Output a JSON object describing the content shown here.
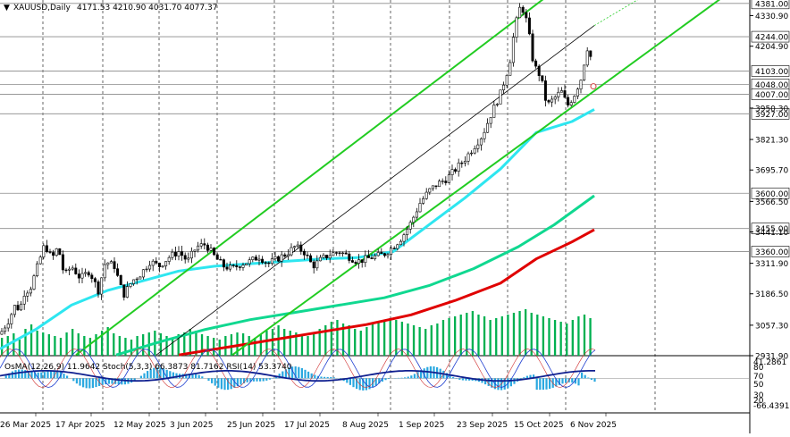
{
  "header": {
    "symbol_label": "XAUUSD,Daily",
    "ohlc_label": "4171.53 4210.90 4031.70 4077.37",
    "indicators_label": "OsMA(12,26,9) 11.9642  Stoch(5,3,3) 66.3873 81.7162  RSI(14) 53.3740"
  },
  "colors": {
    "background": "#ffffff",
    "candle": "#000000",
    "volume": "#00b050",
    "ema_fast": "#2ee6f0",
    "ema_mid": "#10d890",
    "ema_slow": "#e00000",
    "channel": "#22cc22",
    "level_line": "#8a8a8a"
  },
  "chart_data": {
    "type": "candlestick",
    "title": "XAUUSD,Daily",
    "x_tick_labels": [
      "26 Mar 2025",
      "17 Apr 2025",
      "12 May 2025",
      "3 Jun 2025",
      "25 Jun 2025",
      "17 Jul 2025",
      "8 Aug 2025",
      "1 Sep 2025",
      "23 Sep 2025",
      "15 Oct 2025",
      "6 Nov 2025"
    ],
    "price_axis_labels": [
      "4330.90",
      "4204.90",
      "3950.30",
      "3821.30",
      "3695.70",
      "3566.50",
      "3441.10",
      "3311.90",
      "3186.50",
      "3057.30",
      "2931.90"
    ],
    "ylim": [
      2931.9,
      4395
    ],
    "levels": [
      {
        "value": 4381.0,
        "label": "4381.00"
      },
      {
        "value": 4244.0,
        "label": "4244.00"
      },
      {
        "value": 4103.0,
        "label": "4103.00"
      },
      {
        "value": 4048.0,
        "label": "4048.00"
      },
      {
        "value": 4007.0,
        "label": "4007.00"
      },
      {
        "value": 3927.0,
        "label": "3927.00"
      },
      {
        "value": 3600.0,
        "label": "3600.00"
      },
      {
        "value": 3455.0,
        "label": "3455.00"
      },
      {
        "value": 3360.0,
        "label": "3360.00"
      }
    ],
    "close_path": [
      [
        0,
        3020
      ],
      [
        10,
        3080
      ],
      [
        17,
        3140
      ],
      [
        22,
        3120
      ],
      [
        27,
        3190
      ],
      [
        34,
        3210
      ],
      [
        42,
        3300
      ],
      [
        50,
        3390
      ],
      [
        58,
        3330
      ],
      [
        65,
        3380
      ],
      [
        72,
        3260
      ],
      [
        80,
        3300
      ],
      [
        90,
        3250
      ],
      [
        100,
        3280
      ],
      [
        110,
        3200
      ],
      [
        118,
        3320
      ],
      [
        128,
        3300
      ],
      [
        138,
        3180
      ],
      [
        148,
        3240
      ],
      [
        158,
        3270
      ],
      [
        168,
        3320
      ],
      [
        178,
        3300
      ],
      [
        190,
        3340
      ],
      [
        200,
        3360
      ],
      [
        210,
        3320
      ],
      [
        220,
        3380
      ],
      [
        230,
        3390
      ],
      [
        240,
        3340
      ],
      [
        250,
        3300
      ],
      [
        260,
        3290
      ],
      [
        270,
        3310
      ],
      [
        280,
        3320
      ],
      [
        290,
        3340
      ],
      [
        300,
        3310
      ],
      [
        310,
        3330
      ],
      [
        320,
        3350
      ],
      [
        330,
        3380
      ],
      [
        340,
        3360
      ],
      [
        350,
        3300
      ],
      [
        360,
        3330
      ],
      [
        370,
        3350
      ],
      [
        380,
        3360
      ],
      [
        390,
        3340
      ],
      [
        400,
        3320
      ],
      [
        410,
        3330
      ],
      [
        420,
        3340
      ],
      [
        430,
        3350
      ],
      [
        440,
        3380
      ],
      [
        450,
        3420
      ],
      [
        460,
        3480
      ],
      [
        470,
        3560
      ],
      [
        480,
        3610
      ],
      [
        490,
        3640
      ],
      [
        500,
        3660
      ],
      [
        510,
        3700
      ],
      [
        520,
        3740
      ],
      [
        530,
        3790
      ],
      [
        540,
        3840
      ],
      [
        550,
        3930
      ],
      [
        560,
        4010
      ],
      [
        570,
        4130
      ],
      [
        576,
        4280
      ],
      [
        583,
        4380
      ],
      [
        590,
        4300
      ],
      [
        597,
        4130
      ],
      [
        605,
        4080
      ],
      [
        612,
        3960
      ],
      [
        620,
        3990
      ],
      [
        628,
        4020
      ],
      [
        635,
        3960
      ],
      [
        642,
        4000
      ],
      [
        650,
        4070
      ],
      [
        657,
        4200
      ],
      [
        662,
        4150
      ],
      [
        665,
        4077
      ]
    ],
    "ema_fast": [
      [
        0,
        2960
      ],
      [
        40,
        3040
      ],
      [
        80,
        3140
      ],
      [
        120,
        3200
      ],
      [
        160,
        3240
      ],
      [
        200,
        3280
      ],
      [
        240,
        3300
      ],
      [
        280,
        3310
      ],
      [
        320,
        3320
      ],
      [
        360,
        3330
      ],
      [
        400,
        3335
      ],
      [
        440,
        3360
      ],
      [
        480,
        3470
      ],
      [
        520,
        3580
      ],
      [
        560,
        3700
      ],
      [
        600,
        3850
      ],
      [
        640,
        3895
      ],
      [
        665,
        3945
      ]
    ],
    "ema_mid": [
      [
        130,
        2935
      ],
      [
        180,
        2990
      ],
      [
        230,
        3040
      ],
      [
        280,
        3080
      ],
      [
        330,
        3110
      ],
      [
        380,
        3140
      ],
      [
        430,
        3170
      ],
      [
        480,
        3220
      ],
      [
        530,
        3290
      ],
      [
        580,
        3380
      ],
      [
        620,
        3470
      ],
      [
        665,
        3590
      ]
    ],
    "ema_slow": [
      [
        200,
        2935
      ],
      [
        260,
        2970
      ],
      [
        310,
        3000
      ],
      [
        360,
        3030
      ],
      [
        410,
        3060
      ],
      [
        460,
        3100
      ],
      [
        510,
        3160
      ],
      [
        560,
        3230
      ],
      [
        600,
        3330
      ],
      [
        640,
        3400
      ],
      [
        665,
        3450
      ]
    ],
    "channels": [
      {
        "from": [
          85,
          2935
        ],
        "to": [
          612,
          4410
        ]
      },
      {
        "from": [
          260,
          2935
        ],
        "to": [
          810,
          4410
        ]
      }
    ],
    "mid_line": {
      "from": [
        175,
        2935
      ],
      "to": [
        665,
        4290
      ]
    },
    "volume_bars": [
      20,
      22,
      25,
      18,
      30,
      35,
      28,
      26,
      24,
      22,
      20,
      26,
      30,
      25,
      22,
      20,
      24,
      28,
      32,
      25,
      22,
      20,
      18,
      22,
      24,
      26,
      28,
      25,
      22,
      20,
      24,
      26,
      30,
      28,
      24,
      22,
      20,
      18,
      22,
      24,
      26,
      25,
      22,
      20,
      24,
      28,
      30,
      34,
      30,
      28,
      26,
      24,
      22,
      26,
      30,
      34,
      38,
      40,
      36,
      34,
      30,
      28,
      32,
      36,
      38,
      40,
      42,
      40,
      38,
      36,
      34,
      32,
      30,
      34,
      36,
      40,
      42,
      44,
      46,
      48,
      50,
      46,
      44,
      40,
      42,
      44,
      46,
      48,
      50,
      52,
      48,
      46,
      44,
      42,
      40,
      38,
      36,
      40,
      44,
      46,
      42
    ],
    "indicator_axis_labels": [
      "41.2861",
      "80",
      "70",
      "50",
      "30",
      "20",
      "-66.4391"
    ]
  }
}
